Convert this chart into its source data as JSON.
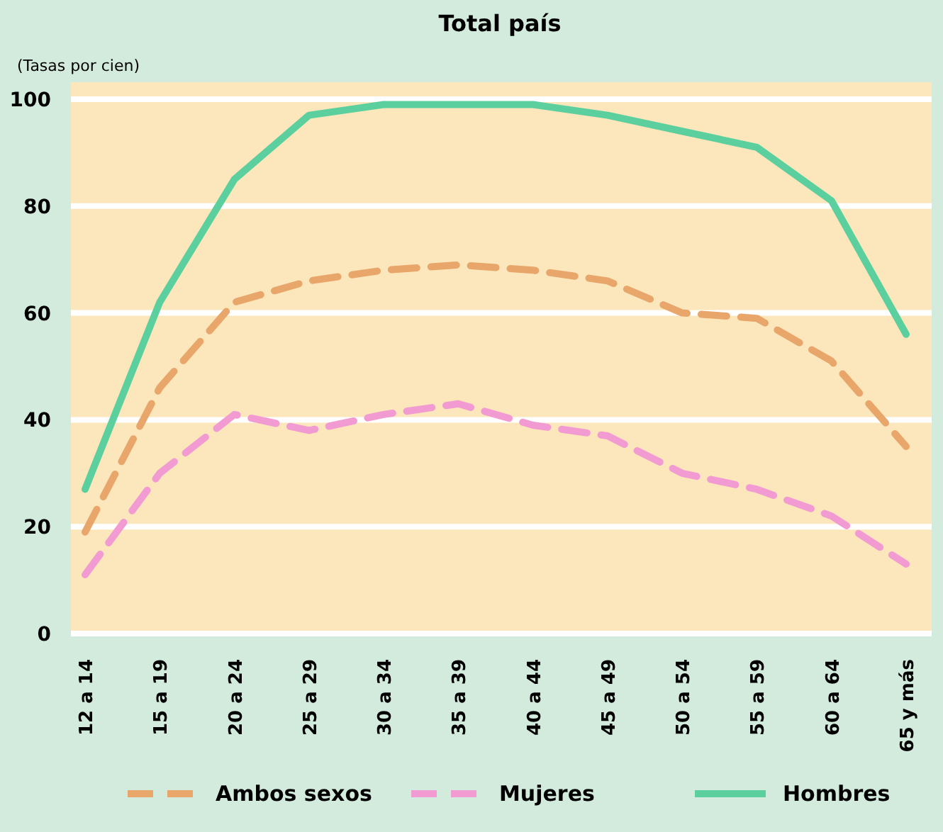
{
  "chart_data": {
    "type": "line",
    "title": "Total país",
    "ylabel": "(Tasas por cien)",
    "categories": [
      "12 a 14",
      "15 a 19",
      "20 a 24",
      "25 a 29",
      "30 a 34",
      "35 a 39",
      "40 a 44",
      "45 a 49",
      "50 a 54",
      "55 a 59",
      "60 a 64",
      "65 y más"
    ],
    "series": [
      {
        "name": "Ambos sexos",
        "color": "#e8a66a",
        "line_style": "dashed",
        "values": [
          19,
          46,
          62,
          66,
          68,
          69,
          68,
          66,
          60,
          59,
          51,
          35
        ]
      },
      {
        "name": "Mujeres",
        "color": "#f29ad2",
        "line_style": "dashed",
        "values": [
          11,
          30,
          41,
          38,
          41,
          43,
          39,
          37,
          30,
          27,
          22,
          13
        ]
      },
      {
        "name": "Hombres",
        "color": "#5ccf9e",
        "line_style": "solid",
        "values": [
          27,
          62,
          85,
          97,
          99,
          99,
          99,
          97,
          94,
          91,
          81,
          56
        ]
      }
    ],
    "ylim": [
      0,
      100
    ],
    "yticks": [
      0,
      20,
      40,
      60,
      80,
      100
    ],
    "grid": "y",
    "legend": "bottom"
  }
}
